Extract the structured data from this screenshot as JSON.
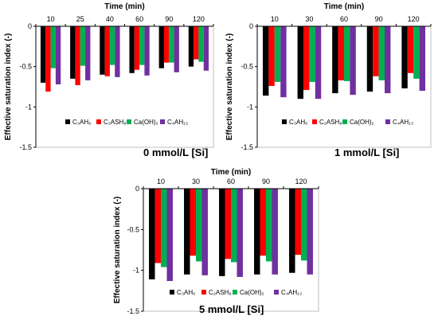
{
  "figure": {
    "colors": {
      "C3AH6": "#000000",
      "C2ASH8": "#ff0000",
      "CaOH2": "#00b050",
      "C4AH13": "#7030a0"
    },
    "legend": [
      "C₃AH₆",
      "C₂ASH₈",
      "Ca(OH)₂",
      "C₄AH₁₃"
    ]
  },
  "chart_data": [
    {
      "type": "bar",
      "title": "0 mmol/L [Si]",
      "xlabel": "Time (min)",
      "ylabel": "Effective saturation index (-)",
      "ylim": [
        -1.5,
        0
      ],
      "yticks": [
        "0",
        "-0.5",
        "-1",
        "-1.5"
      ],
      "categories": [
        "10",
        "25",
        "40",
        "60",
        "90",
        "120"
      ],
      "series": [
        {
          "name": "C₃AH₆",
          "values": [
            -0.7,
            -0.65,
            -0.6,
            -0.58,
            -0.52,
            -0.5
          ]
        },
        {
          "name": "C₂ASH₈",
          "values": [
            -0.81,
            -0.73,
            -0.62,
            -0.54,
            -0.45,
            -0.41
          ]
        },
        {
          "name": "Ca(OH)₂",
          "values": [
            -0.52,
            -0.49,
            -0.48,
            -0.48,
            -0.45,
            -0.44
          ]
        },
        {
          "name": "C₄AH₁₃",
          "values": [
            -0.72,
            -0.67,
            -0.63,
            -0.61,
            -0.57,
            -0.55
          ]
        }
      ]
    },
    {
      "type": "bar",
      "title": "1 mmol/L [Si]",
      "xlabel": "Time (min)",
      "ylabel": "Effective saturation index (-)",
      "ylim": [
        -1.5,
        0
      ],
      "yticks": [
        "0",
        "-0.5",
        "-1",
        "-1.5"
      ],
      "categories": [
        "10",
        "30",
        "60",
        "90",
        "120"
      ],
      "series": [
        {
          "name": "C₃AH₆",
          "values": [
            -0.86,
            -0.9,
            -0.83,
            -0.81,
            -0.77
          ]
        },
        {
          "name": "C₂ASH₈",
          "values": [
            -0.74,
            -0.79,
            -0.67,
            -0.62,
            -0.58
          ]
        },
        {
          "name": "Ca(OH)₂",
          "values": [
            -0.69,
            -0.69,
            -0.68,
            -0.67,
            -0.65
          ]
        },
        {
          "name": "C₄AH₁₃",
          "values": [
            -0.88,
            -0.9,
            -0.85,
            -0.83,
            -0.8
          ]
        }
      ]
    },
    {
      "type": "bar",
      "title": "5 mmol/L [Si]",
      "xlabel": "Time (min)",
      "ylabel": "Effective saturation index (-)",
      "ylim": [
        -1.5,
        0
      ],
      "yticks": [
        "0",
        "-0.5",
        "-1",
        "-1.5"
      ],
      "categories": [
        "10",
        "30",
        "60",
        "90",
        "120"
      ],
      "series": [
        {
          "name": "C₃AH₆",
          "values": [
            -1.11,
            -1.05,
            -1.07,
            -1.05,
            -1.03
          ]
        },
        {
          "name": "C₂ASH₈",
          "values": [
            -0.91,
            -0.82,
            -0.86,
            -0.82,
            -0.81
          ]
        },
        {
          "name": "Ca(OH)₂",
          "values": [
            -0.96,
            -0.89,
            -0.9,
            -0.89,
            -0.88
          ]
        },
        {
          "name": "C₄AH₁₃",
          "values": [
            -1.13,
            -1.06,
            -1.08,
            -1.05,
            -1.05
          ]
        }
      ]
    }
  ]
}
